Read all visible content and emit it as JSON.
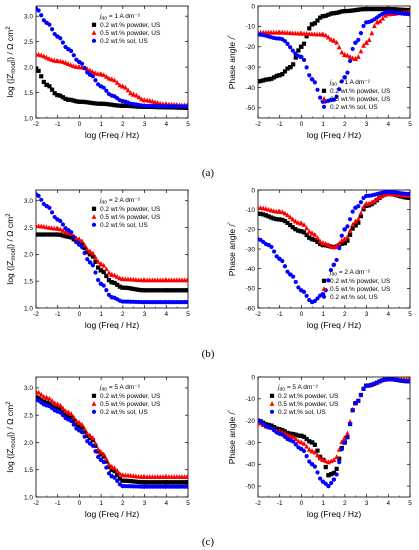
{
  "panels": [
    {
      "caption": "(a)"
    },
    {
      "caption": "(b)"
    },
    {
      "caption": "(c)"
    }
  ],
  "chart_data": [
    {
      "type": "scatter",
      "xlabel": "log (Freq / Hz)",
      "ylabel": "log (|Z_mod|) / Ω cm²",
      "xlim": [
        -2,
        5
      ],
      "ylim": [
        1.0,
        3.2
      ],
      "xticks": [
        -2,
        -1,
        0,
        1,
        2,
        3,
        4,
        5
      ],
      "yticks": [
        1.0,
        1.5,
        2.0,
        2.5,
        3.0
      ],
      "legend_title": "j_ao = 1 A dm⁻²",
      "legend_position": "top-right",
      "series": [
        {
          "name": "0.2 wt.% powder, US",
          "color": "#000000",
          "marker": "square",
          "x": [
            -2,
            -1.5,
            -1,
            -0.5,
            0,
            1,
            2,
            3,
            4,
            5
          ],
          "y": [
            1.97,
            1.65,
            1.45,
            1.36,
            1.32,
            1.28,
            1.24,
            1.22,
            1.21,
            1.2
          ]
        },
        {
          "name": "0.5 wt.% powder, US",
          "color": "#ff0000",
          "marker": "triangle",
          "x": [
            -2,
            -1,
            0,
            1,
            1.5,
            2,
            2.5,
            3,
            4,
            5
          ],
          "y": [
            2.25,
            2.12,
            2.0,
            1.86,
            1.76,
            1.62,
            1.46,
            1.35,
            1.27,
            1.25
          ]
        },
        {
          "name": "0.2 wt.% sol, US",
          "color": "#0000ff",
          "marker": "circle",
          "x": [
            -2,
            -1.5,
            -1,
            -0.5,
            0,
            0.5,
            1,
            1.5,
            2,
            2.5,
            3,
            4,
            5
          ],
          "y": [
            3.15,
            2.87,
            2.6,
            2.35,
            2.1,
            1.85,
            1.62,
            1.44,
            1.33,
            1.27,
            1.24,
            1.23,
            1.23
          ]
        }
      ]
    },
    {
      "type": "scatter",
      "xlabel": "log (Freq / Hz)",
      "ylabel": "Phase angle / °",
      "xlim": [
        -2,
        5
      ],
      "ylim": [
        -55,
        0
      ],
      "xticks": [
        -2,
        -1,
        0,
        1,
        2,
        3,
        4,
        5
      ],
      "yticks": [
        -50,
        -40,
        -30,
        -20,
        -10,
        0
      ],
      "legend_title": "j_ao = 1 A dm⁻²",
      "legend_position": "bottom-right",
      "series": [
        {
          "name": "0.2 wt.% powder, US",
          "color": "#000000",
          "marker": "square",
          "x": [
            -2,
            -1.5,
            -1,
            -0.5,
            0,
            0.5,
            1,
            1.5,
            2,
            3,
            4,
            5
          ],
          "y": [
            -37,
            -36,
            -34,
            -30,
            -20,
            -9,
            -5,
            -3.5,
            -2.5,
            -1.5,
            -1.5,
            -2
          ]
        },
        {
          "name": "0.5 wt.% powder, US",
          "color": "#ff0000",
          "marker": "triangle",
          "x": [
            -2,
            -1,
            0,
            1,
            1.5,
            2,
            2.5,
            3,
            3.5,
            4,
            5
          ],
          "y": [
            -13,
            -13,
            -13.5,
            -14,
            -17,
            -24,
            -26,
            -18,
            -8,
            -4,
            -3
          ]
        },
        {
          "name": "0.2 wt.% sol, US",
          "color": "#0000ff",
          "marker": "circle",
          "x": [
            -2,
            -1,
            0,
            0.5,
            1,
            1.5,
            2,
            2.5,
            3,
            4,
            5
          ],
          "y": [
            -14,
            -16,
            -25,
            -36,
            -47,
            -46,
            -35,
            -18,
            -8,
            -3,
            -4
          ]
        }
      ]
    },
    {
      "type": "scatter",
      "xlabel": "log (Freq / Hz)",
      "ylabel": "log (|Z_mod|) / Ω cm²",
      "xlim": [
        -2,
        5
      ],
      "ylim": [
        1.0,
        3.2
      ],
      "xticks": [
        -2,
        -1,
        0,
        1,
        2,
        3,
        4,
        5
      ],
      "yticks": [
        1.0,
        1.5,
        2.0,
        2.5,
        3.0
      ],
      "legend_title": "j_ao = 2 A dm⁻²",
      "legend_position": "top-right",
      "series": [
        {
          "name": "0.2 wt.% powder, US",
          "color": "#000000",
          "marker": "square",
          "x": [
            -2,
            -1,
            -0.5,
            0,
            0.5,
            1,
            1.5,
            2,
            3,
            4,
            5
          ],
          "y": [
            2.37,
            2.37,
            2.33,
            2.22,
            2.0,
            1.7,
            1.48,
            1.38,
            1.33,
            1.33,
            1.33
          ]
        },
        {
          "name": "0.5 wt.% powder, US",
          "color": "#ff0000",
          "marker": "triangle",
          "x": [
            -2,
            -1,
            -0.5,
            0,
            0.5,
            1,
            1.5,
            2,
            3,
            4,
            5
          ],
          "y": [
            2.53,
            2.48,
            2.4,
            2.28,
            2.05,
            1.82,
            1.62,
            1.54,
            1.52,
            1.52,
            1.52
          ]
        },
        {
          "name": "0.2 wt.% sol, US",
          "color": "#0000ff",
          "marker": "circle",
          "x": [
            -2,
            -1.5,
            -1,
            -0.5,
            0,
            0.5,
            1,
            1.5,
            2,
            3,
            4,
            5
          ],
          "y": [
            3.12,
            2.9,
            2.65,
            2.45,
            2.18,
            1.85,
            1.45,
            1.2,
            1.12,
            1.11,
            1.11,
            1.11
          ]
        }
      ]
    },
    {
      "type": "scatter",
      "xlabel": "log (Freq / Hz)",
      "ylabel": "Phase angle / °",
      "xlim": [
        -2,
        5
      ],
      "ylim": [
        -60,
        0
      ],
      "xticks": [
        -2,
        -1,
        0,
        1,
        2,
        3,
        4,
        5
      ],
      "yticks": [
        -60,
        -50,
        -40,
        -30,
        -20,
        -10,
        0
      ],
      "legend_title": "j_ao = 2 A dm⁻²",
      "legend_position": "bottom-right",
      "series": [
        {
          "name": "0.2 wt.% powder, US",
          "color": "#000000",
          "marker": "square",
          "x": [
            -2,
            -1,
            0,
            0.5,
            1,
            1.5,
            2,
            2.5,
            3,
            4,
            5
          ],
          "y": [
            -12,
            -15,
            -21,
            -25,
            -28,
            -29,
            -27,
            -18,
            -8,
            -2,
            -4
          ]
        },
        {
          "name": "0.5 wt.% powder, US",
          "color": "#ff0000",
          "marker": "triangle",
          "x": [
            -2,
            -1,
            0,
            0.5,
            1,
            1.5,
            2,
            2.5,
            3,
            4,
            5
          ],
          "y": [
            -9,
            -11,
            -17,
            -22,
            -27,
            -29,
            -25,
            -16,
            -7,
            -2,
            -3
          ]
        },
        {
          "name": "0.2 wt.% sol, US",
          "color": "#0000ff",
          "marker": "circle",
          "x": [
            -2,
            -1.5,
            -1,
            -0.5,
            0,
            0.5,
            1,
            1.5,
            2,
            2.5,
            3,
            4,
            5
          ],
          "y": [
            -25,
            -28,
            -35,
            -43,
            -51,
            -57,
            -53,
            -38,
            -20,
            -9,
            -3,
            -1,
            -2
          ]
        }
      ]
    },
    {
      "type": "scatter",
      "xlabel": "log (Freq / Hz)",
      "ylabel": "log (|Z_mod|) / Ω cm²",
      "xlim": [
        -2,
        5
      ],
      "ylim": [
        1.0,
        3.2
      ],
      "xticks": [
        -2,
        -1,
        0,
        1,
        2,
        3,
        4,
        5
      ],
      "yticks": [
        1.0,
        1.5,
        2.0,
        2.5,
        3.0
      ],
      "legend_title": "j_ao = 5 A dm⁻²",
      "legend_position": "top-right",
      "series": [
        {
          "name": "0.2 wt.% powder, US",
          "color": "#000000",
          "marker": "square",
          "x": [
            -2,
            -1.5,
            -1,
            -0.5,
            0,
            0.5,
            1,
            1.5,
            2,
            3,
            4,
            5
          ],
          "y": [
            2.83,
            2.73,
            2.62,
            2.48,
            2.3,
            2.08,
            1.78,
            1.5,
            1.3,
            1.27,
            1.27,
            1.27
          ]
        },
        {
          "name": "0.5 wt.% powder, US",
          "color": "#ff0000",
          "marker": "triangle",
          "x": [
            -2,
            -1.5,
            -1,
            -0.5,
            0,
            0.5,
            1,
            1.5,
            2,
            3,
            4,
            5
          ],
          "y": [
            2.93,
            2.82,
            2.7,
            2.55,
            2.36,
            2.12,
            1.82,
            1.55,
            1.4,
            1.37,
            1.37,
            1.37
          ]
        },
        {
          "name": "0.2 wt.% sol, US",
          "color": "#0000ff",
          "marker": "circle",
          "x": [
            -2,
            -1.5,
            -1,
            -0.5,
            0,
            0.5,
            1,
            1.5,
            2,
            3,
            4,
            5
          ],
          "y": [
            2.78,
            2.68,
            2.57,
            2.42,
            2.22,
            1.98,
            1.68,
            1.38,
            1.2,
            1.19,
            1.19,
            1.19
          ]
        }
      ]
    },
    {
      "type": "scatter",
      "xlabel": "log (Freq / Hz)",
      "ylabel": "Phase angle / °",
      "xlim": [
        -2,
        5
      ],
      "ylim": [
        -55,
        0
      ],
      "xticks": [
        -2,
        -1,
        0,
        1,
        2,
        3,
        4,
        5
      ],
      "yticks": [
        -50,
        -40,
        -30,
        -20,
        -10,
        0
      ],
      "legend_title": "j_ao = 5 A dm⁻²",
      "legend_position": "top-left",
      "series": [
        {
          "name": "0.2 wt.% powder, US",
          "color": "#000000",
          "marker": "square",
          "x": [
            -2,
            -1.5,
            -1,
            -0.5,
            0,
            0.5,
            1,
            1.25,
            1.5,
            2,
            2.5,
            3,
            4,
            5
          ],
          "y": [
            -20,
            -22,
            -24,
            -26,
            -27,
            -30,
            -38,
            -45,
            -44,
            -30,
            -12,
            -4,
            -1,
            -2
          ]
        },
        {
          "name": "0.5 wt.% powder, US",
          "color": "#ff0000",
          "marker": "triangle",
          "x": [
            -2,
            -1.5,
            -1,
            -0.5,
            0,
            0.5,
            1,
            1.25,
            1.5,
            2,
            2.5,
            3,
            4,
            5
          ],
          "y": [
            -21,
            -23,
            -25,
            -27,
            -30,
            -34,
            -38,
            -39,
            -38,
            -28,
            -12,
            -4,
            -1,
            -1
          ]
        },
        {
          "name": "0.2 wt.% sol, US",
          "color": "#0000ff",
          "marker": "circle",
          "x": [
            -2,
            -1.5,
            -1,
            -0.5,
            0,
            0.5,
            1,
            1.25,
            1.5,
            2,
            2.5,
            3,
            4,
            5
          ],
          "y": [
            -20,
            -23,
            -26,
            -29,
            -33,
            -40,
            -48,
            -50,
            -47,
            -30,
            -12,
            -4,
            -1,
            -2
          ]
        }
      ]
    }
  ]
}
